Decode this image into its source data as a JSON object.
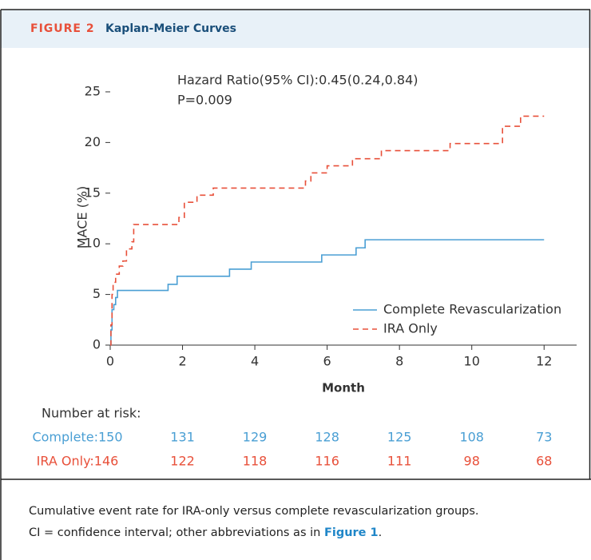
{
  "header": {
    "label": "FIGURE 2",
    "title": "Kaplan-Meier Curves"
  },
  "chart_data": {
    "type": "step",
    "y_label": "MACE (%)",
    "x_label": "Month",
    "annotations": [
      "Hazard Ratio(95% CI):0.45(0.24,0.84)",
      "P=0.009"
    ],
    "xlim": [
      0,
      12.9
    ],
    "xticks": [
      0,
      2,
      4,
      6,
      8,
      10,
      12
    ],
    "ylim": [
      0,
      27
    ],
    "yticks": [
      0,
      5,
      10,
      15,
      20,
      25
    ],
    "legend": "lower right",
    "series": [
      {
        "name": "Complete Revascularization",
        "color": "#4a9fd4",
        "line_style": "solid",
        "x": [
          0,
          0.02,
          0.05,
          0.1,
          0.15,
          0.2,
          1.6,
          1.85,
          3.3,
          3.9,
          5.85,
          6.8,
          7.05,
          12
        ],
        "values": [
          0,
          1.5,
          3.5,
          4,
          4.7,
          5.4,
          6,
          6.8,
          7.5,
          8.2,
          8.9,
          9.6,
          10.4,
          10.4
        ]
      },
      {
        "name": "IRA Only",
        "color": "#e8503a",
        "line_style": "dashed",
        "x": [
          0,
          0.02,
          0.05,
          0.08,
          0.15,
          0.25,
          0.35,
          0.45,
          0.6,
          0.65,
          1.9,
          2.05,
          2.4,
          2.85,
          5.4,
          5.55,
          6,
          6.7,
          7.5,
          9.4,
          10.85,
          11.35,
          12
        ],
        "values": [
          0,
          2,
          5,
          6.2,
          7,
          7.8,
          8.3,
          9.5,
          10.2,
          11.9,
          12.6,
          14.1,
          14.8,
          15.5,
          16.2,
          17,
          17.7,
          18.4,
          19.2,
          19.9,
          21.6,
          22.6,
          22.6
        ]
      }
    ]
  },
  "risk_table": {
    "title": "Number at risk:",
    "rows": [
      {
        "label": "Complete:150",
        "color": "#4a9fd4",
        "values": [
          131,
          129,
          128,
          125,
          108,
          73
        ]
      },
      {
        "label": "IRA Only:146",
        "color": "#e8503a",
        "values": [
          122,
          118,
          116,
          111,
          98,
          68
        ]
      }
    ]
  },
  "caption": {
    "line1": "Cumulative event rate for IRA-only versus complete revascularization groups.",
    "line2": "CI = confidence interval; other abbreviations as in ",
    "link": "Figure 1",
    "end": "."
  }
}
